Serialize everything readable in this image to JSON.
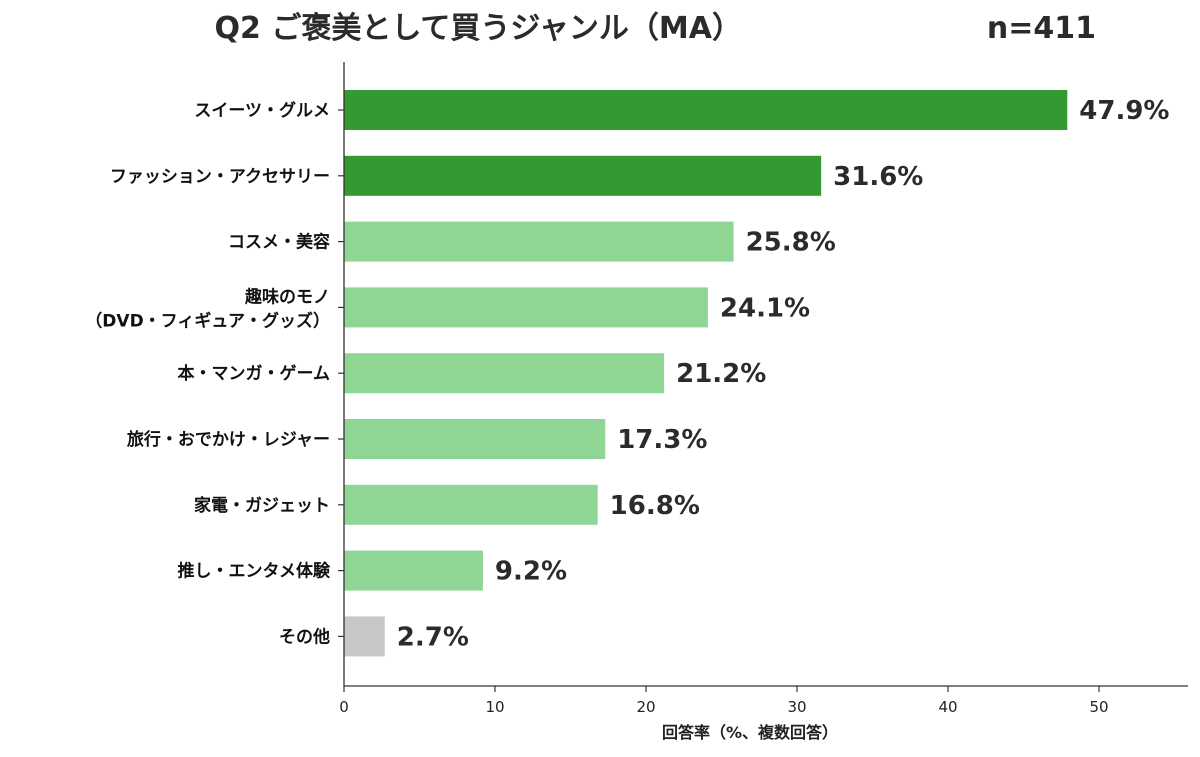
{
  "chart_data": {
    "type": "bar",
    "orientation": "horizontal",
    "title": "Q2 ご褒美として買うジャンル（MA）",
    "sample_size": "n=411",
    "xlabel": "回答率（%、複数回答）",
    "ylabel": "",
    "xlim": [
      0,
      55
    ],
    "xticks": [
      "0",
      "10",
      "20",
      "30",
      "40",
      "50"
    ],
    "grid": false,
    "categories": [
      [
        "スイーツ・グルメ"
      ],
      [
        "ファッション・アクセサリー"
      ],
      [
        "コスメ・美容"
      ],
      [
        "趣味のモノ",
        "（DVD・フィギュア・グッズ）"
      ],
      [
        "本・マンガ・ゲーム"
      ],
      [
        "旅行・おでかけ・レジャー"
      ],
      [
        "家電・ガジェット"
      ],
      [
        "推し・エンタメ体験"
      ],
      [
        "その他"
      ]
    ],
    "values": [
      47.9,
      31.6,
      25.8,
      24.1,
      21.2,
      17.3,
      16.8,
      9.2,
      2.7
    ],
    "value_labels": [
      "47.9%",
      "31.6%",
      "25.8%",
      "24.1%",
      "21.2%",
      "17.3%",
      "16.8%",
      "9.2%",
      "2.7%"
    ],
    "bar_colors": [
      "#339933",
      "#339933",
      "#8fd694",
      "#8fd694",
      "#8fd694",
      "#8fd694",
      "#8fd694",
      "#8fd694",
      "#c8c8c8"
    ]
  }
}
